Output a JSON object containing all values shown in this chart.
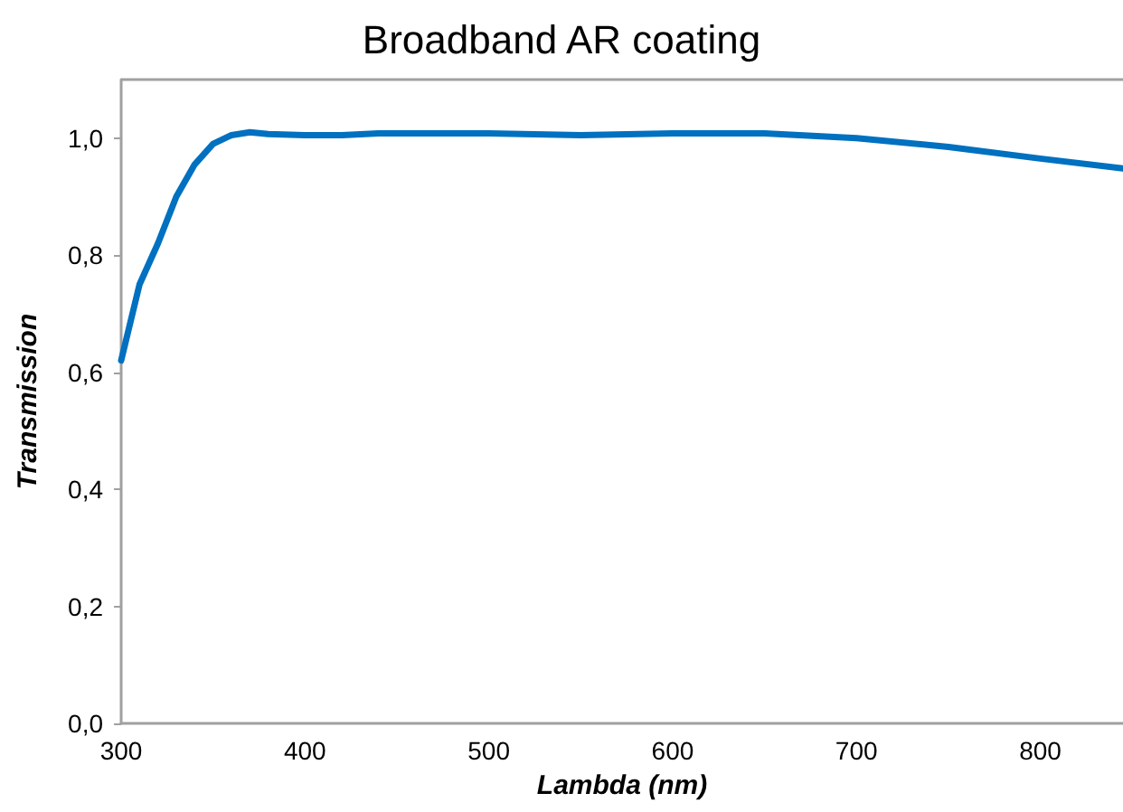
{
  "chart_data": {
    "type": "line",
    "title": "Broadband AR coating",
    "xlabel": "Lambda (nm)",
    "ylabel": "Transmission",
    "x": [
      300,
      310,
      320,
      330,
      340,
      350,
      360,
      370,
      380,
      400,
      420,
      440,
      500,
      550,
      600,
      650,
      700,
      750,
      800,
      845
    ],
    "series": [
      {
        "color": "#0070c0",
        "values": [
          0.62,
          0.75,
          0.82,
          0.9,
          0.955,
          0.99,
          1.005,
          1.01,
          1.007,
          1.005,
          1.005,
          1.008,
          1.008,
          1.005,
          1.008,
          1.008,
          1.0,
          0.985,
          0.965,
          0.948
        ]
      }
    ],
    "xlim": [
      300,
      845
    ],
    "xticks": [
      300,
      400,
      500,
      600,
      700,
      800
    ],
    "ylim": [
      0,
      1.1
    ],
    "yticks": [
      {
        "value": 0,
        "label": "0,0"
      },
      {
        "value": 0.2,
        "label": "0,2"
      },
      {
        "value": 0.4,
        "label": "0,4"
      },
      {
        "value": 0.6,
        "label": "0,6"
      },
      {
        "value": 0.8,
        "label": "0,8"
      },
      {
        "value": 1.0,
        "label": "1,0"
      }
    ],
    "marker": "none",
    "line_style": "solid"
  }
}
